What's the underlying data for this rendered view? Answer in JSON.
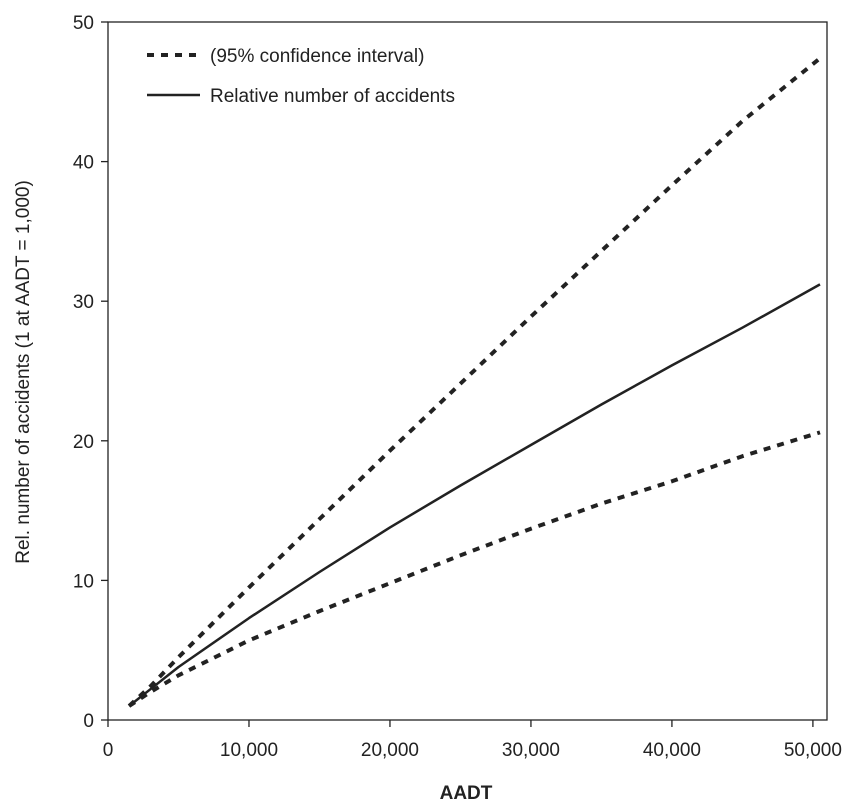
{
  "chart_data": {
    "type": "line",
    "xlabel": "AADT",
    "ylabel": "Rel. number of accidents (1 at AADT = 1,000)",
    "xlim": [
      0,
      51000
    ],
    "ylim": [
      0,
      50
    ],
    "x_ticks": [
      0,
      10000,
      20000,
      30000,
      40000,
      50000
    ],
    "x_tick_labels": [
      "0",
      "10,000",
      "20,000",
      "30,000",
      "40,000",
      "50,000"
    ],
    "y_ticks": [
      0,
      10,
      20,
      30,
      40,
      50
    ],
    "y_tick_labels": [
      "0",
      "10",
      "20",
      "30",
      "40",
      "50"
    ],
    "grid": false,
    "legend_position": "top-left",
    "legend": [
      {
        "label": "(95% confidence interval)",
        "style": "dotted"
      },
      {
        "label": "Relative number of accidents",
        "style": "solid"
      }
    ],
    "series": [
      {
        "name": "Relative number of accidents",
        "style": "solid",
        "x": [
          1500,
          3000,
          5000,
          10000,
          15000,
          20000,
          25000,
          30000,
          35000,
          40000,
          45000,
          50500
        ],
        "y": [
          1.0,
          2.2,
          3.8,
          7.3,
          10.6,
          13.8,
          16.8,
          19.7,
          22.6,
          25.4,
          28.1,
          31.2
        ]
      },
      {
        "name": "(95% confidence interval) upper",
        "style": "dotted",
        "x": [
          1500,
          3000,
          5000,
          10000,
          15000,
          20000,
          25000,
          30000,
          35000,
          40000,
          45000,
          50500
        ],
        "y": [
          1.0,
          2.4,
          4.5,
          9.5,
          14.4,
          19.3,
          24.1,
          28.9,
          33.6,
          38.3,
          42.9,
          47.4
        ]
      },
      {
        "name": "(95% confidence interval) lower",
        "style": "dotted",
        "x": [
          1500,
          3000,
          5000,
          10000,
          15000,
          20000,
          25000,
          30000,
          35000,
          40000,
          45000,
          50500
        ],
        "y": [
          1.0,
          2.0,
          3.2,
          5.7,
          7.8,
          9.8,
          11.8,
          13.7,
          15.5,
          17.1,
          18.9,
          20.6
        ]
      }
    ]
  }
}
